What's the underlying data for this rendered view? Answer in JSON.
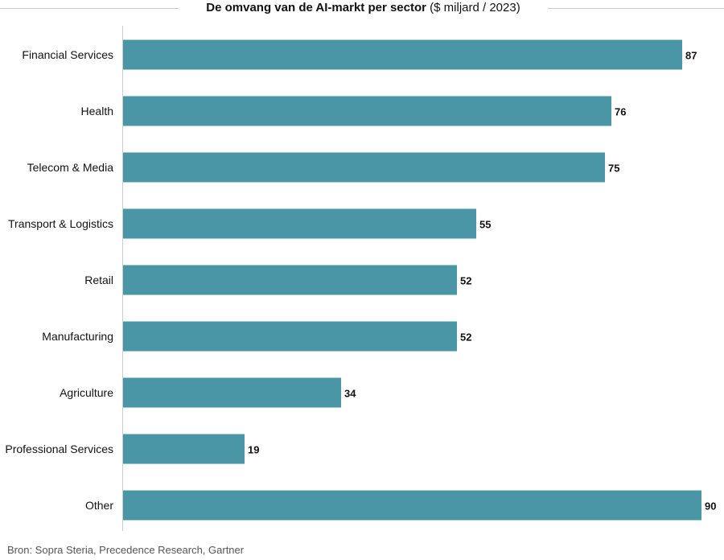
{
  "header": {
    "title_bold": "De omvang van de AI-markt per sector",
    "title_normal": "($ miljard / 2023)"
  },
  "footer": {
    "source": "Bron: Sopra Steria, Precedence Research, Gartner"
  },
  "chart_data": {
    "type": "bar",
    "orientation": "horizontal",
    "title": "De omvang van de AI-markt per sector ($ miljard / 2023)",
    "categories": [
      "Financial Services",
      "Health",
      "Telecom & Media",
      "Transport & Logistics",
      "Retail",
      "Manufacturing",
      "Agriculture",
      "Professional Services",
      "Other"
    ],
    "values": [
      87,
      76,
      75,
      55,
      52,
      52,
      34,
      19,
      90
    ],
    "xlim": [
      0,
      90
    ],
    "grid": false,
    "data_labels": true,
    "colors": {
      "bar": "#4a96a6",
      "axis": "#cccccc",
      "text": "#111111"
    }
  }
}
